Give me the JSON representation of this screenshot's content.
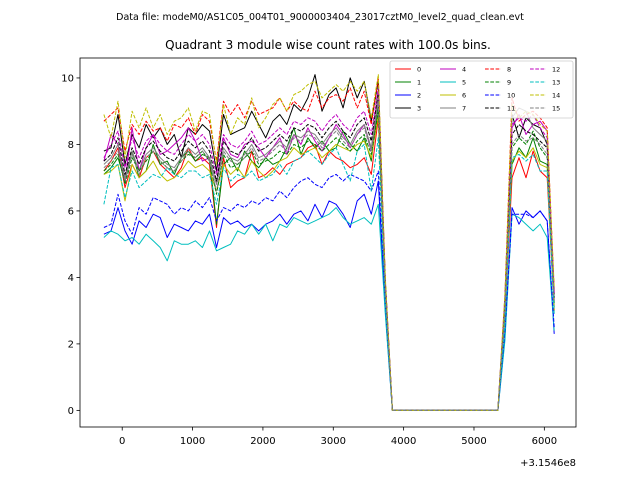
{
  "chart_data": {
    "type": "line",
    "suptitle": "Data file: modeM0/AS1C05_004T01_9000003404_23017cztM0_level2_quad_clean.evt",
    "title": "Quadrant 3 module wise count rates with 100.0s bins.",
    "xlabel": "",
    "ylabel": "",
    "x_offset_label": "+3.1546e8",
    "xlim": [
      -600,
      6450
    ],
    "ylim": [
      -0.5,
      10.6
    ],
    "xticks": [
      0,
      1000,
      2000,
      3000,
      4000,
      5000,
      6000
    ],
    "yticks": [
      0,
      2,
      4,
      6,
      8,
      10
    ],
    "legend_position": "top-right",
    "x": [
      -260,
      -160,
      -60,
      40,
      140,
      240,
      340,
      440,
      540,
      640,
      740,
      840,
      940,
      1040,
      1140,
      1240,
      1340,
      1440,
      1540,
      1640,
      1740,
      1840,
      1940,
      2040,
      2140,
      2240,
      2340,
      2440,
      2540,
      2640,
      2740,
      2840,
      2940,
      3040,
      3140,
      3240,
      3340,
      3440,
      3540,
      3640,
      3740,
      3840,
      3940,
      4040,
      4140,
      4240,
      4340,
      4440,
      4540,
      4640,
      4740,
      4840,
      4940,
      5040,
      5140,
      5240,
      5340,
      5440,
      5540,
      5640,
      5740,
      5840,
      5940,
      6040,
      6140
    ],
    "series": [
      {
        "name": "0",
        "color": "#ff0000",
        "dash": false,
        "values": [
          7.2,
          7.5,
          7.9,
          6.7,
          7.4,
          7.0,
          7.6,
          7.8,
          7.4,
          7.2,
          7.0,
          7.3,
          7.9,
          7.5,
          7.6,
          7.4,
          5.5,
          7.6,
          6.7,
          6.9,
          7.0,
          7.8,
          7.0,
          7.1,
          7.3,
          7.1,
          7.4,
          7.5,
          7.6,
          7.9,
          8.0,
          7.4,
          7.8,
          7.6,
          7.5,
          7.3,
          7.4,
          7.6,
          7.1,
          8.8,
          3.5,
          0,
          0,
          0,
          0,
          0,
          0,
          0,
          0,
          0,
          0,
          0,
          0,
          0,
          0,
          0,
          0,
          2.8,
          7.0,
          7.6,
          7.0,
          7.8,
          7.2,
          7.0,
          3.0
        ]
      },
      {
        "name": "1",
        "color": "#008000",
        "dash": false,
        "values": [
          7.1,
          7.3,
          7.6,
          6.9,
          7.8,
          7.0,
          7.2,
          8.0,
          7.4,
          7.5,
          7.1,
          7.6,
          7.8,
          7.5,
          7.7,
          7.6,
          5.6,
          7.4,
          7.6,
          7.2,
          7.8,
          7.5,
          7.3,
          7.6,
          7.4,
          7.5,
          7.9,
          8.5,
          7.7,
          8.2,
          7.9,
          8.1,
          7.8,
          7.9,
          8.4,
          8.0,
          7.8,
          8.2,
          7.5,
          9.2,
          3.4,
          0,
          0,
          0,
          0,
          0,
          0,
          0,
          0,
          0,
          0,
          0,
          0,
          0,
          0,
          0,
          0,
          3.0,
          7.4,
          7.9,
          7.6,
          8.2,
          7.5,
          7.4,
          3.1
        ]
      },
      {
        "name": "2",
        "color": "#0000ff",
        "dash": false,
        "values": [
          5.3,
          5.4,
          6.1,
          5.4,
          5.0,
          5.7,
          5.5,
          5.9,
          5.8,
          5.2,
          5.6,
          5.5,
          5.4,
          5.7,
          5.6,
          5.9,
          4.9,
          5.8,
          5.6,
          5.7,
          5.5,
          5.6,
          5.4,
          5.6,
          5.7,
          5.9,
          5.6,
          5.9,
          6.0,
          5.7,
          6.2,
          5.8,
          6.3,
          6.2,
          5.9,
          5.5,
          6.3,
          6.5,
          5.9,
          6.9,
          3.0,
          0,
          0,
          0,
          0,
          0,
          0,
          0,
          0,
          0,
          0,
          0,
          0,
          0,
          0,
          0,
          0,
          2.2,
          6.1,
          5.6,
          6.0,
          5.8,
          6.0,
          5.7,
          2.3
        ]
      },
      {
        "name": "3",
        "color": "#000000",
        "dash": false,
        "values": [
          7.8,
          7.9,
          8.9,
          7.4,
          8.3,
          7.9,
          8.6,
          8.2,
          8.5,
          8.0,
          8.3,
          7.6,
          8.5,
          8.3,
          8.6,
          8.4,
          7.2,
          8.9,
          8.3,
          8.4,
          8.5,
          9.0,
          8.6,
          8.2,
          8.7,
          8.9,
          8.6,
          9.2,
          9.0,
          9.4,
          10.1,
          9.0,
          9.5,
          9.7,
          9.1,
          10.0,
          9.4,
          9.9,
          8.7,
          9.9,
          3.9,
          0,
          0,
          0,
          0,
          0,
          0,
          0,
          0,
          0,
          0,
          0,
          0,
          0,
          0,
          0,
          0,
          3.3,
          8.9,
          8.2,
          8.8,
          8.6,
          8.5,
          8.0,
          3.5
        ]
      },
      {
        "name": "4",
        "color": "#bf00bf",
        "dash": false,
        "values": [
          7.5,
          8.3,
          8.0,
          6.9,
          8.5,
          7.2,
          7.9,
          8.3,
          7.7,
          7.8,
          8.0,
          8.2,
          8.5,
          8.1,
          7.5,
          7.6,
          6.8,
          8.2,
          7.7,
          7.6,
          8.0,
          8.1,
          7.9,
          7.6,
          7.9,
          8.2,
          7.7,
          8.3,
          8.0,
          8.5,
          8.1,
          7.8,
          8.2,
          8.6,
          8.3,
          7.9,
          8.3,
          8.6,
          7.8,
          9.4,
          3.6,
          0,
          0,
          0,
          0,
          0,
          0,
          0,
          0,
          0,
          0,
          0,
          0,
          0,
          0,
          0,
          0,
          3.2,
          8.5,
          8.9,
          8.3,
          8.6,
          8.7,
          8.4,
          3.3
        ]
      },
      {
        "name": "5",
        "color": "#00bfbf",
        "dash": false,
        "values": [
          5.2,
          5.4,
          5.3,
          5.1,
          5.2,
          5.0,
          5.3,
          5.1,
          4.9,
          4.5,
          5.1,
          5.0,
          5.0,
          5.1,
          4.9,
          5.4,
          4.8,
          4.9,
          5.0,
          5.4,
          5.3,
          5.6,
          5.3,
          5.6,
          5.1,
          5.6,
          5.5,
          5.8,
          5.7,
          5.6,
          5.7,
          5.8,
          5.9,
          6.1,
          5.8,
          5.6,
          5.7,
          5.8,
          5.6,
          6.2,
          2.9,
          0,
          0,
          0,
          0,
          0,
          0,
          0,
          0,
          0,
          0,
          0,
          0,
          0,
          0,
          0,
          0,
          2.1,
          5.9,
          5.8,
          5.6,
          5.4,
          5.6,
          5.2,
          2.4
        ]
      },
      {
        "name": "6",
        "color": "#bfbf00",
        "dash": false,
        "values": [
          7.1,
          7.2,
          7.4,
          6.3,
          7.4,
          7.0,
          7.2,
          7.5,
          7.1,
          6.9,
          7.0,
          7.2,
          7.5,
          7.3,
          7.4,
          7.2,
          6.6,
          7.4,
          7.1,
          7.3,
          7.0,
          7.5,
          7.2,
          7.0,
          7.2,
          7.5,
          7.6,
          7.9,
          7.7,
          7.8,
          7.9,
          7.6,
          7.8,
          8.0,
          7.9,
          7.8,
          8.0,
          8.1,
          7.6,
          8.9,
          3.4,
          0,
          0,
          0,
          0,
          0,
          0,
          0,
          0,
          0,
          0,
          0,
          0,
          0,
          0,
          0,
          0,
          2.9,
          7.5,
          7.8,
          7.6,
          7.9,
          7.4,
          7.3,
          3.0
        ]
      },
      {
        "name": "7",
        "color": "#808080",
        "dash": false,
        "values": [
          7.4,
          7.6,
          8.0,
          7.0,
          7.8,
          7.2,
          7.7,
          7.9,
          7.6,
          7.4,
          7.3,
          7.6,
          7.9,
          7.7,
          7.9,
          7.6,
          6.8,
          7.9,
          7.6,
          7.5,
          7.7,
          8.0,
          7.6,
          7.7,
          7.9,
          8.1,
          7.9,
          8.3,
          8.2,
          8.4,
          8.3,
          8.0,
          8.3,
          8.5,
          8.2,
          8.0,
          8.4,
          8.6,
          7.9,
          9.5,
          3.7,
          0,
          0,
          0,
          0,
          0,
          0,
          0,
          0,
          0,
          0,
          0,
          0,
          0,
          0,
          0,
          0,
          3.2,
          8.8,
          9.1,
          9.0,
          8.5,
          8.3,
          8.1,
          3.4
        ]
      },
      {
        "name": "8",
        "color": "#ff0000",
        "dash": true,
        "values": [
          8.7,
          8.9,
          9.1,
          7.8,
          8.6,
          8.3,
          8.7,
          8.4,
          8.5,
          8.1,
          8.6,
          8.5,
          8.8,
          8.3,
          8.9,
          8.7,
          7.5,
          9.3,
          8.9,
          9.2,
          8.8,
          9.3,
          8.9,
          9.0,
          9.1,
          9.4,
          9.0,
          9.3,
          9.1,
          9.0,
          9.6,
          9.1,
          9.4,
          9.5,
          9.3,
          9.7,
          9.1,
          9.6,
          8.6,
          10.0,
          3.9,
          0,
          0,
          0,
          0,
          0,
          0,
          0,
          0,
          0,
          0,
          0,
          0,
          0,
          0,
          0,
          0,
          3.4,
          9.4,
          8.7,
          8.9,
          9.0,
          8.8,
          8.5,
          3.6
        ]
      },
      {
        "name": "9",
        "color": "#008000",
        "dash": true,
        "values": [
          7.2,
          7.4,
          7.7,
          6.8,
          7.6,
          7.2,
          7.5,
          7.8,
          7.5,
          7.3,
          7.2,
          7.5,
          7.7,
          7.6,
          7.8,
          7.5,
          6.5,
          7.7,
          7.3,
          7.4,
          7.6,
          7.8,
          7.4,
          7.5,
          7.6,
          7.8,
          7.7,
          8.0,
          7.9,
          8.1,
          8.0,
          7.8,
          8.0,
          8.2,
          8.0,
          7.8,
          8.1,
          8.3,
          7.7,
          9.0,
          3.5,
          0,
          0,
          0,
          0,
          0,
          0,
          0,
          0,
          0,
          0,
          0,
          0,
          0,
          0,
          0,
          0,
          3.1,
          7.9,
          8.2,
          8.0,
          8.4,
          7.9,
          7.6,
          3.2
        ]
      },
      {
        "name": "10",
        "color": "#0000ff",
        "dash": true,
        "values": [
          5.5,
          5.6,
          6.5,
          5.7,
          5.3,
          6.1,
          5.9,
          6.4,
          6.3,
          6.2,
          5.9,
          6.1,
          6.0,
          6.3,
          6.1,
          6.4,
          5.7,
          6.1,
          6.0,
          6.2,
          6.1,
          6.3,
          6.2,
          6.4,
          6.3,
          6.6,
          6.4,
          6.7,
          6.9,
          7.0,
          6.8,
          6.7,
          7.0,
          7.1,
          6.9,
          7.1,
          7.0,
          6.9,
          6.6,
          7.2,
          3.2,
          0,
          0,
          0,
          0,
          0,
          0,
          0,
          0,
          0,
          0,
          0,
          0,
          0,
          0,
          0,
          0,
          2.4,
          5.9,
          5.9,
          5.9,
          5.8,
          6.0,
          5.7,
          2.5
        ]
      },
      {
        "name": "11",
        "color": "#000000",
        "dash": true,
        "values": [
          7.5,
          7.7,
          8.2,
          7.1,
          7.9,
          7.4,
          7.9,
          8.1,
          7.8,
          7.6,
          7.5,
          7.8,
          8.1,
          7.9,
          8.1,
          7.8,
          6.9,
          8.1,
          7.8,
          7.7,
          7.9,
          8.2,
          7.8,
          7.9,
          8.1,
          8.3,
          8.1,
          8.5,
          8.4,
          8.6,
          8.5,
          8.2,
          8.5,
          8.7,
          8.4,
          8.2,
          8.6,
          8.8,
          8.1,
          9.6,
          3.8,
          0,
          0,
          0,
          0,
          0,
          0,
          0,
          0,
          0,
          0,
          0,
          0,
          0,
          0,
          0,
          0,
          3.3,
          8.3,
          8.6,
          8.4,
          8.3,
          8.1,
          7.9,
          3.4
        ]
      },
      {
        "name": "12",
        "color": "#bf00bf",
        "dash": true,
        "values": [
          7.6,
          8.0,
          8.4,
          7.3,
          8.2,
          7.6,
          8.1,
          8.3,
          8.0,
          7.8,
          7.7,
          8.0,
          8.3,
          8.1,
          8.3,
          8.0,
          7.1,
          8.3,
          8.0,
          7.9,
          8.1,
          8.4,
          8.0,
          8.1,
          8.3,
          8.5,
          8.3,
          8.7,
          8.6,
          8.8,
          8.7,
          8.4,
          8.7,
          8.9,
          8.6,
          8.4,
          8.8,
          9.0,
          8.3,
          9.7,
          3.9,
          0,
          0,
          0,
          0,
          0,
          0,
          0,
          0,
          0,
          0,
          0,
          0,
          0,
          0,
          0,
          0,
          3.4,
          8.6,
          8.8,
          8.7,
          8.9,
          8.5,
          8.2,
          3.5
        ]
      },
      {
        "name": "13",
        "color": "#00bfbf",
        "dash": true,
        "values": [
          6.2,
          7.3,
          7.4,
          6.4,
          7.2,
          6.7,
          6.9,
          7.1,
          7.0,
          7.3,
          7.1,
          7.0,
          7.2,
          7.2,
          7.0,
          7.1,
          6.2,
          7.3,
          6.9,
          7.1,
          7.0,
          7.2,
          6.9,
          7.0,
          7.1,
          7.4,
          7.1,
          7.5,
          7.6,
          7.8,
          7.6,
          7.4,
          7.7,
          7.9,
          7.4,
          6.9,
          7.8,
          8.0,
          6.6,
          8.2,
          3.3,
          0,
          0,
          0,
          0,
          0,
          0,
          0,
          0,
          0,
          0,
          0,
          0,
          0,
          0,
          0,
          0,
          2.6,
          7.6,
          7.7,
          7.5,
          7.7,
          7.2,
          7.2,
          2.9
        ]
      },
      {
        "name": "14",
        "color": "#bfbf00",
        "dash": true,
        "values": [
          8.9,
          8.2,
          9.3,
          7.6,
          9.0,
          8.5,
          9.1,
          8.5,
          8.9,
          8.3,
          8.7,
          8.8,
          9.1,
          8.4,
          9.0,
          8.9,
          7.4,
          9.2,
          8.3,
          8.8,
          8.6,
          9.4,
          8.5,
          8.8,
          9.2,
          9.4,
          9.0,
          9.5,
          9.6,
          9.8,
          9.9,
          9.4,
          9.6,
          9.8,
          9.6,
          9.9,
          9.6,
          9.9,
          8.8,
          10.1,
          4.0,
          0,
          0,
          0,
          0,
          0,
          0,
          0,
          0,
          0,
          0,
          0,
          0,
          0,
          0,
          0,
          0,
          3.5,
          9.2,
          8.8,
          9.0,
          8.9,
          8.6,
          8.4,
          3.7
        ]
      },
      {
        "name": "15",
        "color": "#808080",
        "dash": true,
        "values": [
          7.3,
          7.5,
          7.8,
          6.9,
          7.7,
          7.1,
          7.6,
          7.8,
          7.5,
          7.3,
          7.2,
          7.5,
          7.8,
          7.6,
          7.8,
          7.5,
          6.6,
          7.8,
          7.5,
          7.4,
          7.6,
          7.9,
          7.5,
          7.6,
          7.8,
          8.0,
          7.8,
          8.2,
          8.1,
          8.3,
          8.2,
          7.9,
          8.2,
          8.4,
          8.1,
          7.9,
          8.3,
          8.5,
          7.8,
          9.3,
          3.6,
          0,
          0,
          0,
          0,
          0,
          0,
          0,
          0,
          0,
          0,
          0,
          0,
          0,
          0,
          0,
          0,
          3.1,
          8.0,
          8.3,
          8.1,
          8.2,
          8.0,
          7.7,
          3.3
        ]
      }
    ]
  }
}
